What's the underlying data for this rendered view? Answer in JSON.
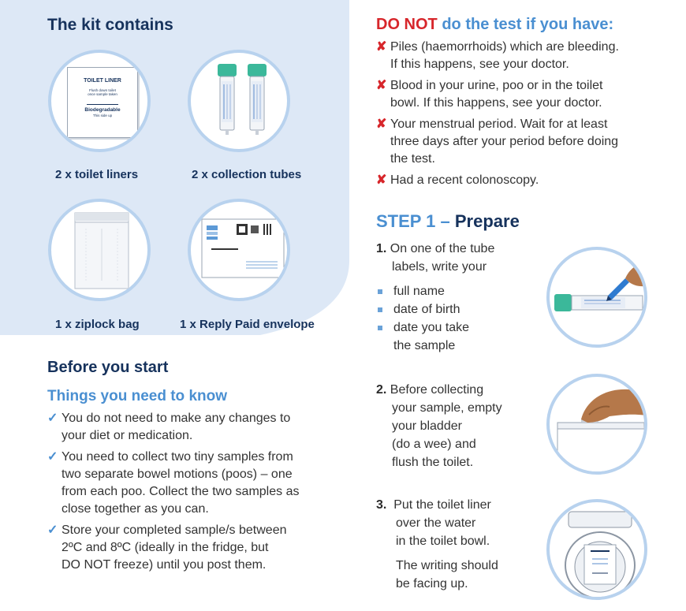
{
  "kit": {
    "title": "The kit contains",
    "items": [
      {
        "label": "2 x toilet liners",
        "icon": "toilet-liner-icon"
      },
      {
        "label": "2 x collection tubes",
        "icon": "collection-tubes-icon"
      },
      {
        "label": "1 x ziplock bag",
        "icon": "ziplock-bag-icon"
      },
      {
        "label": "1 x Reply Paid envelope",
        "icon": "envelope-icon"
      }
    ],
    "liner_card": {
      "title": "TOILET LINER",
      "line1": "Flush down toilet",
      "line2": "once sample taken",
      "bio": "Biodegradable",
      "side": "This side up"
    }
  },
  "before": {
    "title": "Before you start",
    "subtitle": "Things you need to know",
    "items": [
      {
        "l1": "You do not need to make any changes to",
        "l2": "your diet or medication."
      },
      {
        "l1": "You need to collect two tiny samples from",
        "l2": "two separate bowel motions (poos) – one",
        "l3": "from each poo. Collect the two samples as",
        "l4": "close together as you can."
      },
      {
        "l1": "Store your completed sample/s between",
        "l2": "2ºC and 8ºC (ideally in the fridge, but",
        "l3": "DO NOT freeze) until you post them."
      }
    ],
    "mark": "✓"
  },
  "donot": {
    "prefix": "DO NOT",
    "rest": " do the test if you have:",
    "mark": "✘",
    "items": [
      {
        "l1": "Piles (haemorrhoids) which are bleeding.",
        "l2": "If this happens, see your doctor."
      },
      {
        "l1": "Blood in your urine, poo or in the toilet",
        "l2": "bowl. If this happens, see your doctor."
      },
      {
        "l1": "Your menstrual period. Wait for at least",
        "l2": "three days after your period before doing",
        "l3": "the test."
      },
      {
        "l1": "Had a recent colonoscopy."
      }
    ]
  },
  "step1": {
    "prefix": "STEP 1 – ",
    "title": "Prepare",
    "s1": {
      "num": "1.",
      "l1": "On one of the tube",
      "l2": "labels, write your",
      "bullets": [
        "full name",
        "date of birth",
        "date you take"
      ],
      "b3b": "the sample"
    },
    "s2": {
      "num": "2.",
      "l1": "Before collecting",
      "l2": "your sample, empty",
      "l3": "your bladder",
      "l4": "(do a wee) and",
      "l5": "flush the toilet."
    },
    "s3": {
      "num": "3.",
      "l1": "Put the toilet liner",
      "l2": "over the water",
      "l3": "in the toilet bowl.",
      "l4": "The writing should",
      "l5": "be facing up."
    }
  },
  "colors": {
    "navy": "#16325c",
    "light_blue": "#4a8fd1",
    "red": "#d7262b",
    "panel": "#dde8f6"
  }
}
